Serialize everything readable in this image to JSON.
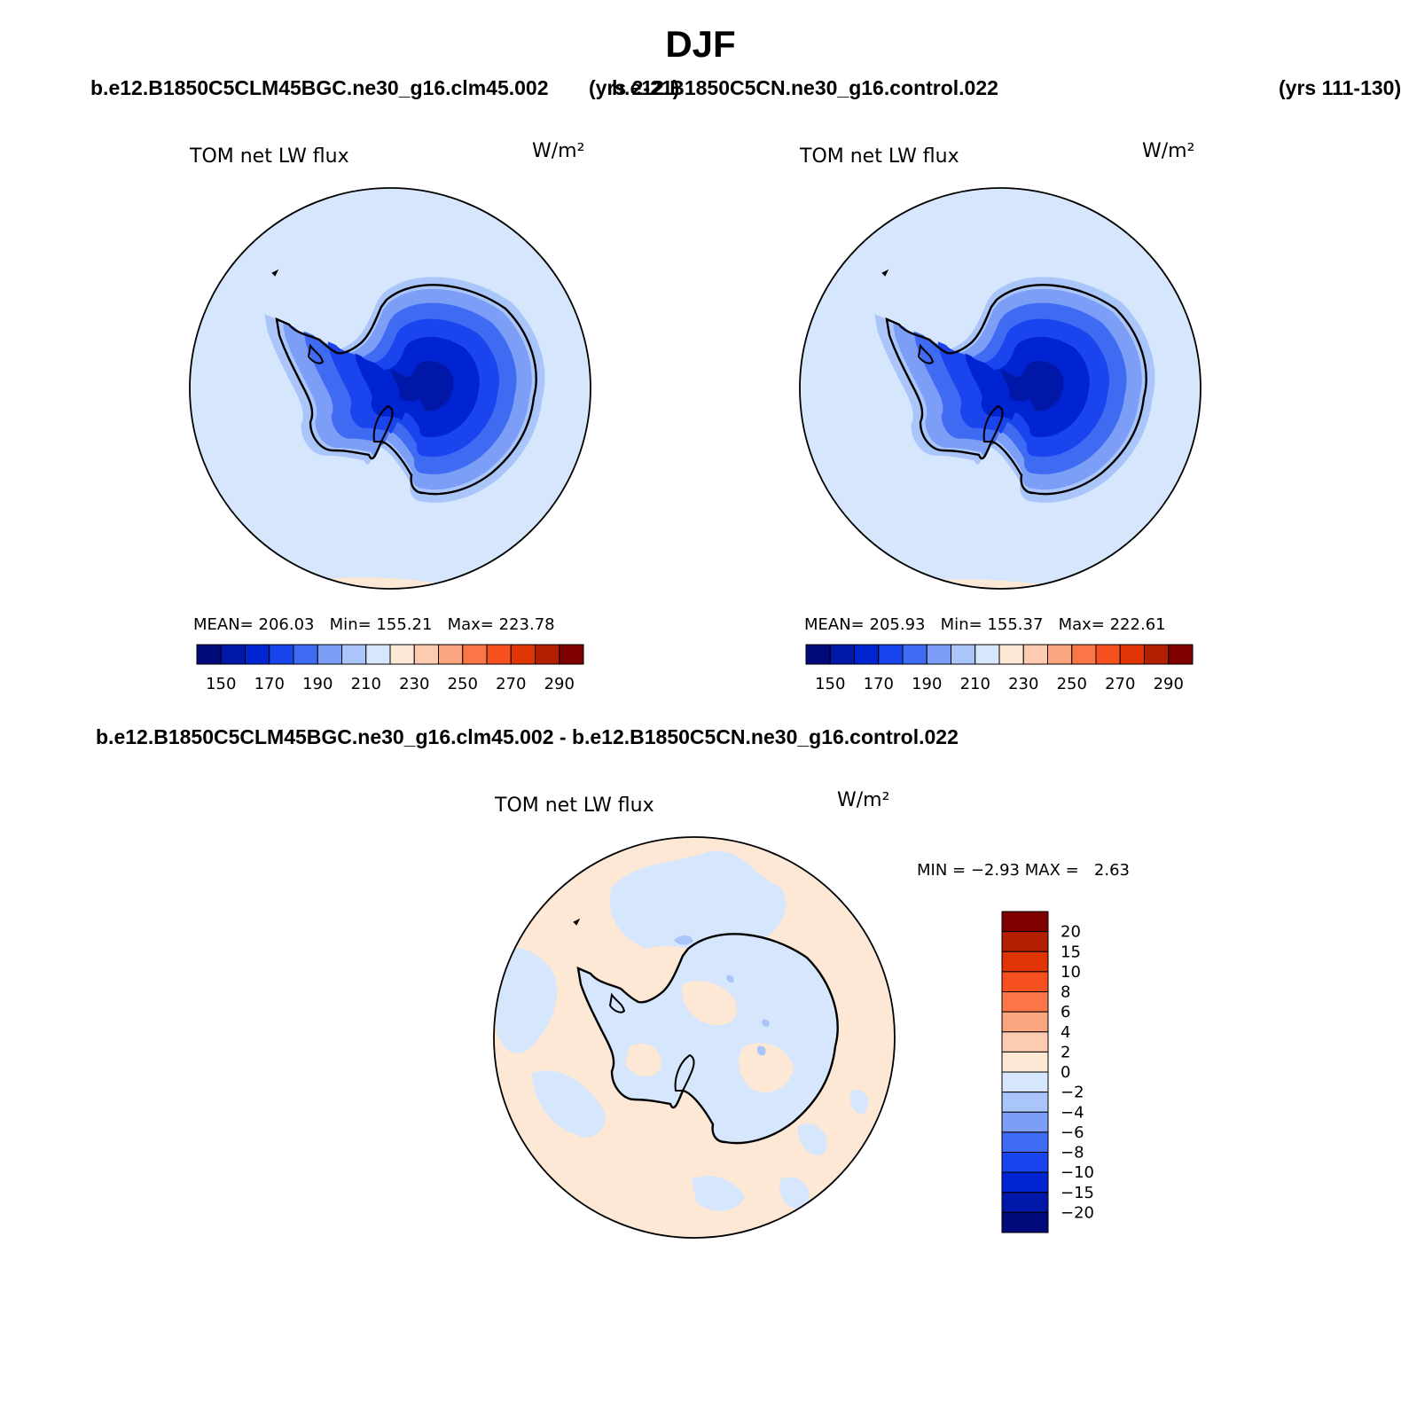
{
  "title": "DJF",
  "header": {
    "case1": "b.e12.B1850C5CLM45BGC.ne30_g16.clm45.002",
    "years1": "(yrs 2-21)",
    "case2": "b.e12.B1850C5CN.ne30_g16.control.022",
    "years2": "(yrs 111-130)"
  },
  "diff_header": "b.e12.B1850C5CLM45BGC.ne30_g16.clm45.002 - b.e12.B1850C5CN.ne30_g16.control.022",
  "colors": {
    "abs_scale": [
      "#000a7a",
      "#0017a8",
      "#0024d2",
      "#1a44ee",
      "#3f6af2",
      "#7c9ef6",
      "#aac5fa",
      "#d6e6fc",
      "#fde7d5",
      "#fccbb0",
      "#fba57e",
      "#fb7646",
      "#f6501e",
      "#e03405",
      "#b41f02",
      "#800000"
    ],
    "diff_scale": [
      "#000a7a",
      "#0017a8",
      "#0024d2",
      "#1a44ee",
      "#3f6af2",
      "#7c9ef6",
      "#aac5fa",
      "#d6e6fc",
      "#fde7d5",
      "#fccbb0",
      "#fba57e",
      "#fb7646",
      "#f6501e",
      "#e03405",
      "#b41f02",
      "#800000"
    ]
  },
  "chart_data": [
    {
      "type": "heatmap",
      "projection": "south polar stereographic",
      "case": "b.e12.B1850C5CLM45BGC.ne30_g16.clm45.002",
      "title": "TOM net LW flux",
      "units": "W/m²",
      "stats": {
        "mean_label": "MEAN=",
        "mean": "206.03",
        "min_label": "Min=",
        "min": "155.21",
        "max_label": "Max=",
        "max": "223.78"
      },
      "levels": [
        150,
        160,
        170,
        180,
        190,
        200,
        210,
        220,
        230,
        240,
        250,
        260,
        270,
        280,
        290
      ],
      "tick_labels": [
        "150",
        "170",
        "190",
        "210",
        "230",
        "250",
        "270",
        "290"
      ],
      "antarctica_interior_min": 155.21,
      "ocean_value": 215
    },
    {
      "type": "heatmap",
      "projection": "south polar stereographic",
      "case": "b.e12.B1850C5CN.ne30_g16.control.022",
      "title": "TOM net LW flux",
      "units": "W/m²",
      "stats": {
        "mean_label": "MEAN=",
        "mean": "205.93",
        "min_label": "Min=",
        "min": "155.37",
        "max_label": "Max=",
        "max": "222.61"
      },
      "levels": [
        150,
        160,
        170,
        180,
        190,
        200,
        210,
        220,
        230,
        240,
        250,
        260,
        270,
        280,
        290
      ],
      "tick_labels": [
        "150",
        "170",
        "190",
        "210",
        "230",
        "250",
        "270",
        "290"
      ],
      "antarctica_interior_min": 155.37,
      "ocean_value": 215
    },
    {
      "type": "heatmap",
      "projection": "south polar stereographic",
      "case": "difference",
      "title": "TOM net LW flux",
      "units": "W/m²",
      "stats": {
        "min_label": "MIN =",
        "min": "−2.93",
        "max_label": "MAX =",
        "max": "2.63"
      },
      "levels": [
        -20,
        -15,
        -10,
        -8,
        -6,
        -4,
        -2,
        0,
        2,
        4,
        6,
        8,
        10,
        15,
        20
      ],
      "tick_labels": [
        "20",
        "15",
        "10",
        "8",
        "6",
        "4",
        "2",
        "0",
        "−2",
        "−4",
        "−6",
        "−8",
        "−10",
        "−15",
        "−20"
      ]
    }
  ]
}
